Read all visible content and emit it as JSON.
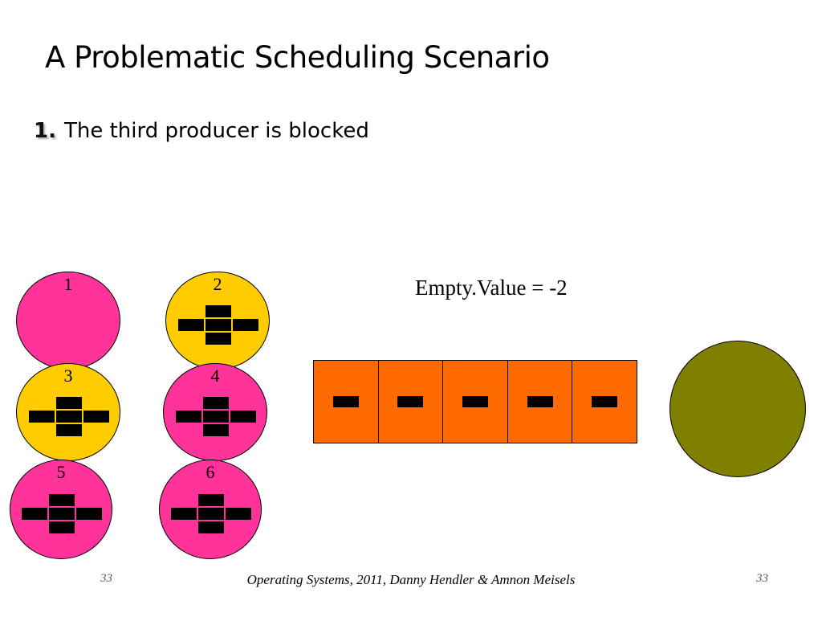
{
  "slide": {
    "title": "A Problematic Scheduling Scenario",
    "bullet_number": "1.",
    "bullet_text": "The third producer is blocked",
    "empty_value_label": "Empty.Value = -2"
  },
  "colors": {
    "pink": "#ff3399",
    "yellow": "#ffcc00",
    "buffer": "#ff6a00",
    "consumer": "#808000"
  },
  "processes": [
    {
      "label": "1",
      "color": "pink",
      "has_item": false
    },
    {
      "label": "2",
      "color": "yellow",
      "has_item": true
    },
    {
      "label": "3",
      "color": "yellow",
      "has_item": true
    },
    {
      "label": "4",
      "color": "pink",
      "has_item": true
    },
    {
      "label": "5",
      "color": "pink",
      "has_item": true
    },
    {
      "label": "6",
      "color": "pink",
      "has_item": true
    }
  ],
  "buffer": {
    "slots": 5,
    "filled": 5
  },
  "footer": {
    "text": "Operating Systems, 2011,  Danny Hendler & Amnon Meisels",
    "page_left": "33",
    "page_right": "33"
  }
}
